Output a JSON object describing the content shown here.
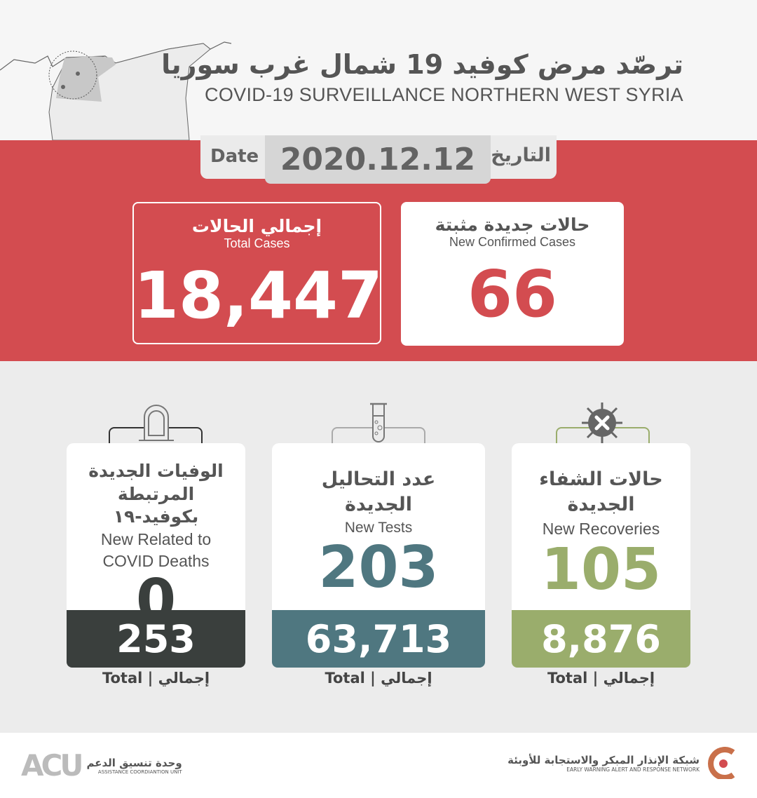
{
  "header": {
    "title_ar": "ترصّد مرض كوفيد 19 شمال غرب سوريا",
    "title_en": "COVID-19 SURVEILLANCE NORTHERN WEST SYRIA",
    "map_icon": "syria-map-icon"
  },
  "date": {
    "label_en": "Date",
    "label_ar": "التاريخ",
    "value": "2020.12.12"
  },
  "total_cases": {
    "label_ar": "إجمالي الحالات",
    "label_en": "Total Cases",
    "value": "18,447"
  },
  "new_confirmed": {
    "label_ar": "حالات جديدة مثبتة",
    "label_en": "New Confirmed Cases",
    "value": "66"
  },
  "stats": [
    {
      "label_ar": "الوفيات الجديدة المرتبطة بكوفيد-١٩",
      "label_en": "New Related to COVID Deaths",
      "value": "0",
      "total": "253",
      "total_label": "Total  |  إجمالي",
      "icon": "tombstone-icon",
      "color": "#3a3f3d"
    },
    {
      "label_ar": "عدد التحاليل الجديدة",
      "label_en": "New Tests",
      "value": "203",
      "total": "63,713",
      "total_label": "Total  |  إجمالي",
      "icon": "test-tube-icon",
      "color": "#4f7780"
    },
    {
      "label_ar": "حالات الشفاء الجديدة",
      "label_en": "New Recoveries",
      "value": "105",
      "total": "8,876",
      "total_label": "Total  |  إجمالي",
      "icon": "virus-cross-icon",
      "color": "#9aad6c"
    }
  ],
  "footer": {
    "acu_ar": "وحدة تنسيق الدعم",
    "acu_en": "ASSISTANCE COORDIANTION UNIT",
    "acu_logo": "ACU",
    "ewarn_ar": "شبكة الإنذار المبكر والاستجابة للأوبئة",
    "ewarn_en": "EARLY WARNING ALERT AND RESPONSE NETWORK"
  },
  "colors": {
    "band": "#d34c50",
    "deaths": "#3a3f3d",
    "tests": "#4f7780",
    "recoveries": "#9aad6c"
  }
}
